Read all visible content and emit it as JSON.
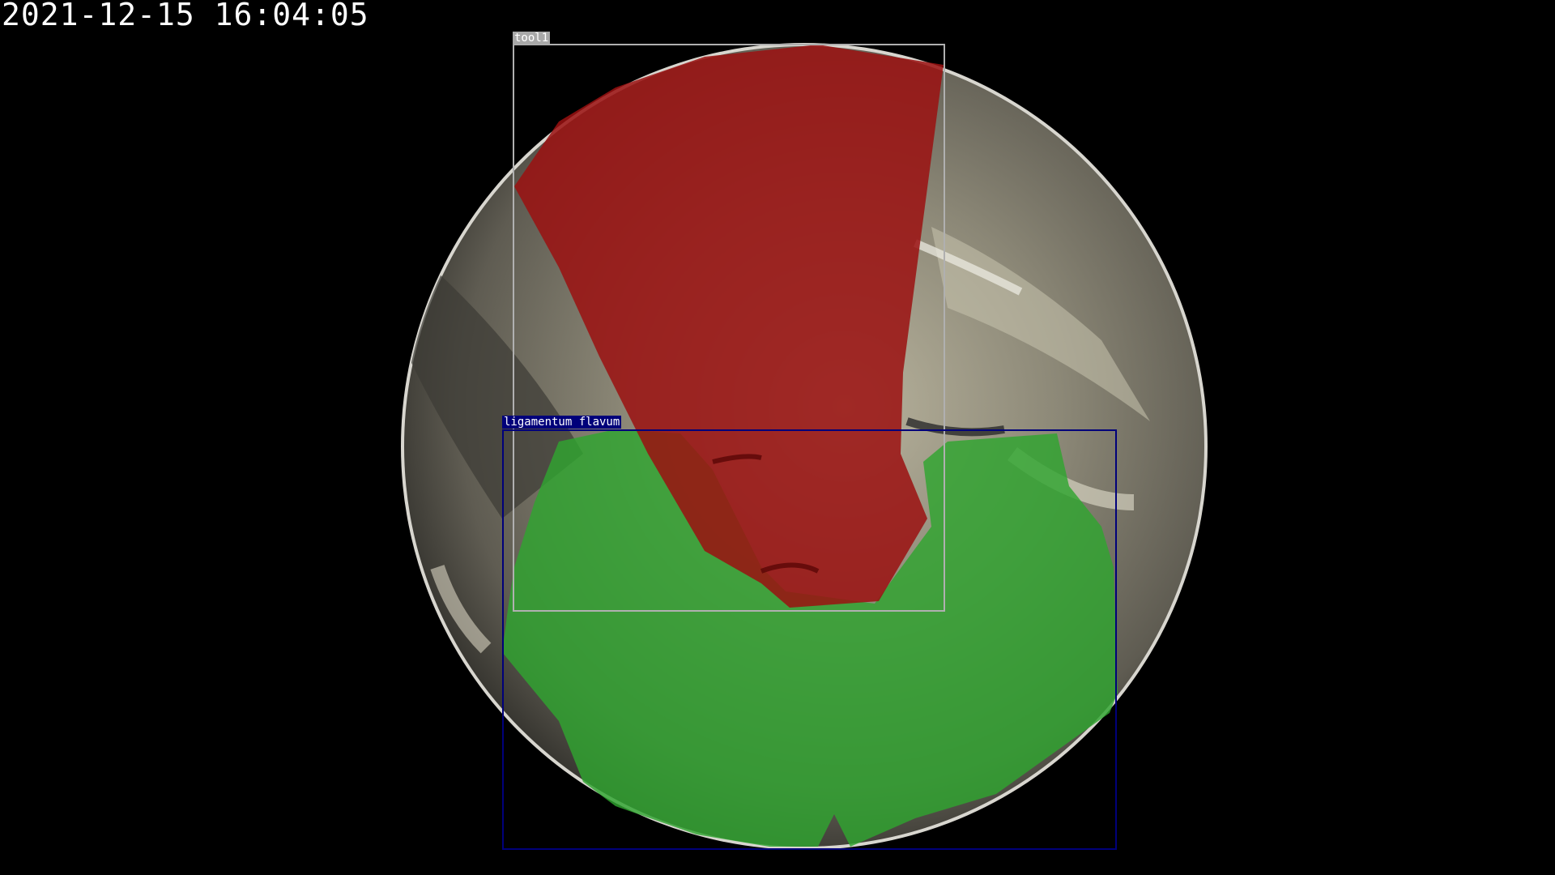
{
  "overlay": {
    "timestamp": "2021-12-15 16:04:05"
  },
  "detections": [
    {
      "label": "tool1",
      "color": "#b0b0b0",
      "mask_color": "#9b1010"
    },
    {
      "label": "ligamentum flavum",
      "color": "#00007a",
      "mask_color": "#2fa52f"
    }
  ],
  "colors": {
    "background": "#000000",
    "tissue": "#8a8576"
  }
}
